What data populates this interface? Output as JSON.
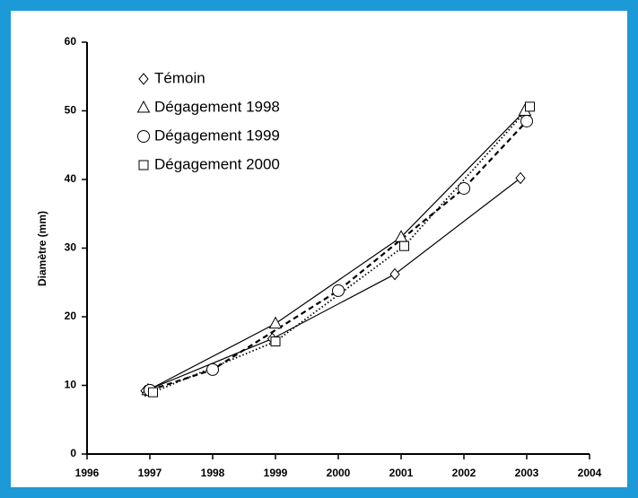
{
  "chart_data": {
    "type": "line",
    "ylabel": "Diamètre (mm)",
    "xlim": [
      1996,
      2004
    ],
    "xticks": [
      1996,
      1997,
      1998,
      1999,
      2000,
      2001,
      2002,
      2003,
      2004
    ],
    "ylim": [
      0,
      60
    ],
    "yticks": [
      0,
      10,
      20,
      30,
      40,
      50,
      60
    ],
    "legend": "upper left",
    "series": [
      {
        "name": "Témoin",
        "color": "#000000",
        "marker": "diamond",
        "linestyle": "solid",
        "x": [
          1996.93,
          1998.95,
          2000.9,
          2002.9
        ],
        "values": [
          9.2,
          16.8,
          26.2,
          40.2
        ]
      },
      {
        "name": "Dégagement 1998",
        "color": "#000000",
        "marker": "triangle",
        "linestyle": "solid",
        "x": [
          1996.97,
          1999,
          2001,
          2002.97
        ],
        "values": [
          9.3,
          19.0,
          31.6,
          50.0
        ]
      },
      {
        "name": "Dégagement 1999",
        "color": "#000000",
        "marker": "circle",
        "linestyle": "dashed",
        "x": [
          1997,
          1998,
          2000,
          2002,
          2003
        ],
        "values": [
          9.3,
          12.3,
          23.8,
          38.7,
          48.5
        ]
      },
      {
        "name": "Dégagement 2000",
        "color": "#000000",
        "marker": "square",
        "linestyle": "dotted",
        "x": [
          1997.05,
          1999,
          2001.05,
          2003.05
        ],
        "values": [
          9.0,
          16.4,
          30.3,
          50.6
        ]
      }
    ]
  }
}
